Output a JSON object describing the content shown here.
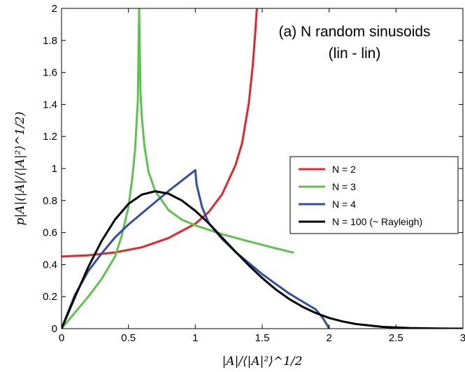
{
  "chart_data": {
    "type": "line",
    "title": "(a) N random sinusoids",
    "subtitle": "(lin - lin)",
    "xlabel": "|A|/⟨|A|²⟩^1/2",
    "ylabel": "p|A|(|A|/⟨|A|²⟩^1/2)",
    "xlim": [
      0,
      3
    ],
    "ylim": [
      0,
      2
    ],
    "xticks": [
      "0",
      "0.5",
      "1",
      "1.5",
      "2",
      "2.5",
      "3"
    ],
    "yticks": [
      "0",
      "0.2",
      "0.4",
      "0.6",
      "0.8",
      "1",
      "1.2",
      "1.4",
      "1.6",
      "1.8",
      "2"
    ],
    "grid": false,
    "legend_position": "right",
    "series": [
      {
        "name": "N = 2",
        "color": "#e8242a",
        "points": [
          [
            0,
            0.45
          ],
          [
            0.2,
            0.458
          ],
          [
            0.4,
            0.476
          ],
          [
            0.6,
            0.508
          ],
          [
            0.8,
            0.566
          ],
          [
            1.0,
            0.655
          ],
          [
            1.1,
            0.728
          ],
          [
            1.2,
            0.839
          ],
          [
            1.3,
            1.02
          ],
          [
            1.35,
            1.16
          ],
          [
            1.4,
            1.41
          ],
          [
            1.43,
            1.65
          ],
          [
            1.45,
            1.87
          ],
          [
            1.46,
            2.0
          ]
        ]
      },
      {
        "name": "N = 3",
        "color": "#5cc44a",
        "points": [
          [
            0,
            0.0
          ],
          [
            0.1,
            0.1
          ],
          [
            0.2,
            0.2
          ],
          [
            0.3,
            0.31
          ],
          [
            0.4,
            0.45
          ],
          [
            0.45,
            0.58
          ],
          [
            0.5,
            0.76
          ],
          [
            0.53,
            0.95
          ],
          [
            0.55,
            1.12
          ],
          [
            0.57,
            1.42
          ],
          [
            0.58,
            2.0
          ],
          [
            0.59,
            1.48
          ],
          [
            0.6,
            1.32
          ],
          [
            0.62,
            1.14
          ],
          [
            0.65,
            0.98
          ],
          [
            0.7,
            0.86
          ],
          [
            0.8,
            0.74
          ],
          [
            0.9,
            0.68
          ],
          [
            1.0,
            0.645
          ],
          [
            1.2,
            0.59
          ],
          [
            1.4,
            0.545
          ],
          [
            1.6,
            0.502
          ],
          [
            1.73,
            0.475
          ]
        ]
      },
      {
        "name": "N = 4",
        "color": "#2e4ea8",
        "points": [
          [
            0,
            0.0
          ],
          [
            0.1,
            0.21
          ],
          [
            0.2,
            0.36
          ],
          [
            0.3,
            0.47
          ],
          [
            0.4,
            0.57
          ],
          [
            0.5,
            0.65
          ],
          [
            0.6,
            0.72
          ],
          [
            0.7,
            0.79
          ],
          [
            0.8,
            0.86
          ],
          [
            0.9,
            0.925
          ],
          [
            1.0,
            0.99
          ],
          [
            1.01,
            0.9
          ],
          [
            1.05,
            0.76
          ],
          [
            1.1,
            0.66
          ],
          [
            1.2,
            0.56
          ],
          [
            1.3,
            0.48
          ],
          [
            1.4,
            0.41
          ],
          [
            1.5,
            0.34
          ],
          [
            1.6,
            0.28
          ],
          [
            1.7,
            0.22
          ],
          [
            1.8,
            0.17
          ],
          [
            1.9,
            0.12
          ],
          [
            1.95,
            0.07
          ],
          [
            1.98,
            0.03
          ],
          [
            2.0,
            0.0
          ]
        ]
      },
      {
        "name": "N = 100 (~ Rayleigh)",
        "color": "#000000",
        "points": [
          [
            0,
            0.0
          ],
          [
            0.1,
            0.196
          ],
          [
            0.2,
            0.385
          ],
          [
            0.3,
            0.548
          ],
          [
            0.4,
            0.681
          ],
          [
            0.5,
            0.779
          ],
          [
            0.6,
            0.837
          ],
          [
            0.7,
            0.858
          ],
          [
            0.8,
            0.843
          ],
          [
            0.9,
            0.8
          ],
          [
            1.0,
            0.736
          ],
          [
            1.1,
            0.658
          ],
          [
            1.2,
            0.569
          ],
          [
            1.3,
            0.481
          ],
          [
            1.4,
            0.395
          ],
          [
            1.5,
            0.316
          ],
          [
            1.6,
            0.246
          ],
          [
            1.7,
            0.186
          ],
          [
            1.8,
            0.137
          ],
          [
            1.9,
            0.098
          ],
          [
            2.0,
            0.067
          ],
          [
            2.1,
            0.045
          ],
          [
            2.2,
            0.029
          ],
          [
            2.4,
            0.011
          ],
          [
            2.6,
            0.004
          ],
          [
            2.8,
            0.001
          ],
          [
            3.0,
            0.0
          ]
        ]
      }
    ]
  }
}
